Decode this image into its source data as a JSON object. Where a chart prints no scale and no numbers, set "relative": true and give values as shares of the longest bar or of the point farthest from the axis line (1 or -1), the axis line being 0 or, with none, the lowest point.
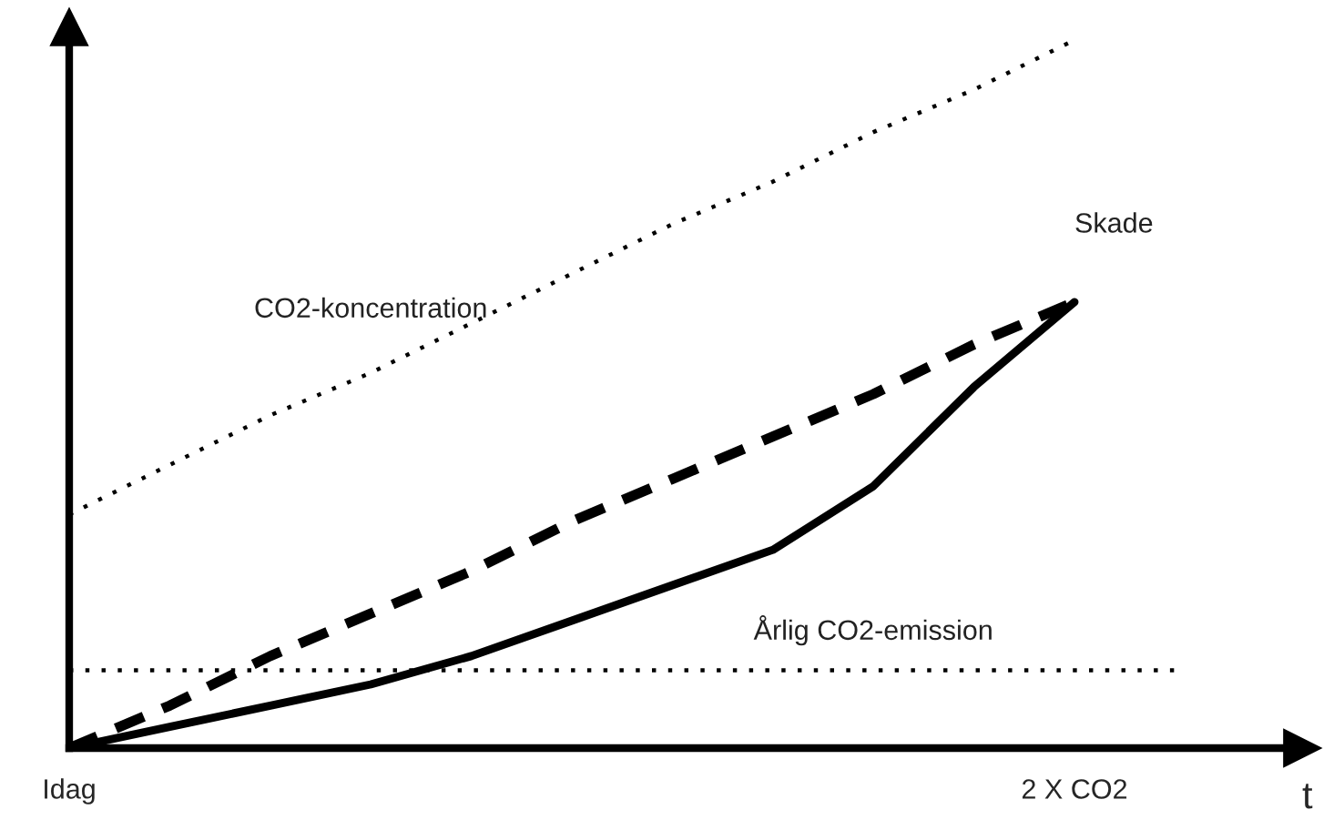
{
  "chart_data": {
    "type": "line",
    "relative": true,
    "xlabel": "t",
    "categories": [
      "Idag",
      null,
      null,
      null,
      null,
      null,
      null,
      null,
      null,
      null,
      "2 X CO2",
      null
    ],
    "series": [
      {
        "name": "CO2-koncentration",
        "color": "#000000",
        "line_style": "dotted",
        "values": [
          0.33,
          0.4,
          0.47,
          0.53,
          0.6,
          0.67,
          0.74,
          0.8,
          0.87,
          0.93,
          1.0,
          null
        ]
      },
      {
        "color": "#000000",
        "line_style": "dashed",
        "values": [
          0,
          0.06,
          0.13,
          0.19,
          0.25,
          0.32,
          0.38,
          0.44,
          0.5,
          0.57,
          0.63,
          null
        ]
      },
      {
        "name": "Skade",
        "color": "#000000",
        "line_style": "solid",
        "values": [
          0,
          0.03,
          0.06,
          0.09,
          0.13,
          0.18,
          0.23,
          0.28,
          0.37,
          0.51,
          0.63,
          null
        ]
      },
      {
        "name": "Årlig CO2-emission",
        "color": "#000000",
        "line_style": "dotted",
        "values": [
          0.11,
          0.11,
          0.11,
          0.11,
          0.11,
          0.11,
          0.11,
          0.11,
          0.11,
          0.11,
          0.11,
          0.11
        ]
      }
    ],
    "tick_labels": "x",
    "grid": false,
    "legend": false
  }
}
